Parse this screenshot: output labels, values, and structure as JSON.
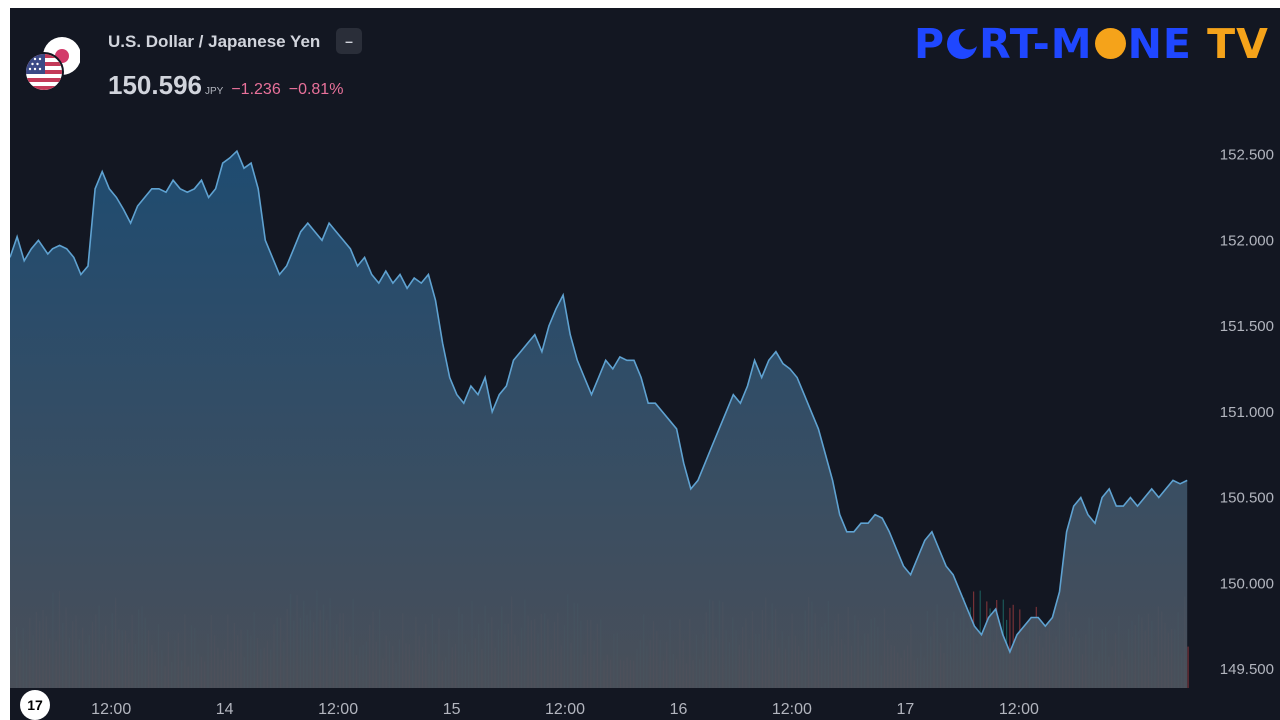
{
  "header": {
    "symbol_name": "U.S. Dollar / Japanese Yen",
    "price": "150.596",
    "currency": "JPY",
    "change": "−1.236",
    "change_pct": "−0.81%",
    "collapse_label": "–"
  },
  "brand": {
    "part1": "P",
    "part2": "RT-M",
    "part3": "NE",
    "part4": " TV"
  },
  "colors": {
    "background": "#131722",
    "line": "#5fa2d1",
    "area_top": "#1f4e75",
    "area_bottom": "#4c525c",
    "axis_text": "#b2b5be",
    "change": "#e8719a",
    "volume_up": "#26a69a",
    "volume_down": "#ef5350",
    "brand_blue": "#1f47ff",
    "brand_orange": "#f5a31a"
  },
  "icons": [
    "us-flag-icon",
    "japan-flag-icon",
    "tradingview-logo-icon"
  ],
  "tv_logo": "17",
  "chart_data": {
    "type": "area",
    "title": "U.S. Dollar / Japanese Yen",
    "ylim": [
      149.4,
      152.9
    ],
    "y_ticks": [
      "152.500",
      "152.000",
      "151.500",
      "151.000",
      "150.500",
      "150.000",
      "149.500"
    ],
    "x_ticks": [
      "12:00",
      "14",
      "12:00",
      "15",
      "12:00",
      "16",
      "12:00",
      "17",
      "12:00"
    ],
    "x_range_hours": [
      0,
      124.8
    ],
    "grid": false,
    "legend": "none",
    "series": [
      {
        "x": [
          0,
          0.75,
          1.5,
          2.25,
          3,
          4,
          4.5,
          5.25,
          6,
          6.75,
          7.5,
          8.25,
          9,
          9.75,
          10.5,
          11.25,
          12,
          12.75,
          13.5,
          14.25,
          15,
          15.75,
          16.5,
          17.25,
          18,
          18.75,
          19.5,
          20.25,
          21,
          21.75,
          22.5,
          23.25,
          24,
          24.75,
          25.5,
          26.25,
          27,
          27.75,
          28.5,
          29.25,
          30,
          30.75,
          31.5,
          32.25,
          33,
          33.75,
          34.5,
          35.25,
          36,
          36.75,
          37.5,
          38.25,
          39,
          39.75,
          40.5,
          41.25,
          42,
          42.75,
          43.5,
          44.25,
          45,
          45.75,
          46.5,
          47.25,
          48,
          48.75,
          49.5,
          50.25,
          51,
          51.75,
          52.5,
          53.25,
          54,
          54.75,
          55.5,
          56.25,
          57,
          57.75,
          58.5,
          59.25,
          60,
          60.75,
          61.5,
          62.25,
          63,
          63.75,
          64.5,
          65.25,
          66,
          66.75,
          67.5,
          68.25,
          69,
          69.75,
          70.5,
          71.25,
          72,
          72.75,
          73.5,
          74.25,
          75,
          75.75,
          76.5,
          77.25,
          78,
          78.75,
          79.5,
          80.25,
          81,
          81.75,
          82.5,
          83.25,
          84,
          84.75,
          85.5,
          86.25,
          87,
          87.75,
          88.5,
          89.25,
          90,
          90.75,
          91.5,
          92.25,
          93,
          93.75,
          94.5,
          95.25,
          96,
          96.75,
          97.5,
          98.25,
          99,
          99.75,
          100.5,
          101.25,
          102,
          102.75,
          103.5,
          104.25,
          105,
          105.75,
          106.5,
          107.25,
          108,
          108.75,
          109.5,
          110.25,
          111,
          111.75,
          112.5,
          113.25,
          114,
          114.75,
          115.5,
          116.25,
          117,
          117.75,
          118.5,
          119.25,
          120,
          120.75,
          121.5,
          122.25,
          123,
          123.75,
          124.5
        ],
        "values": [
          151.9,
          152.02,
          151.88,
          151.95,
          152.0,
          151.92,
          151.95,
          151.97,
          151.95,
          151.9,
          151.8,
          151.85,
          152.3,
          152.4,
          152.3,
          152.25,
          152.18,
          152.1,
          152.2,
          152.25,
          152.3,
          152.3,
          152.28,
          152.35,
          152.3,
          152.28,
          152.3,
          152.35,
          152.25,
          152.3,
          152.45,
          152.48,
          152.52,
          152.42,
          152.45,
          152.3,
          152.0,
          151.9,
          151.8,
          151.85,
          151.95,
          152.05,
          152.1,
          152.05,
          152.0,
          152.1,
          152.05,
          152.0,
          151.95,
          151.85,
          151.9,
          151.8,
          151.75,
          151.82,
          151.75,
          151.8,
          151.72,
          151.78,
          151.75,
          151.8,
          151.65,
          151.4,
          151.2,
          151.1,
          151.05,
          151.15,
          151.1,
          151.2,
          151.0,
          151.1,
          151.15,
          151.3,
          151.35,
          151.4,
          151.45,
          151.35,
          151.5,
          151.6,
          151.68,
          151.45,
          151.3,
          151.2,
          151.1,
          151.2,
          151.3,
          151.25,
          151.32,
          151.3,
          151.3,
          151.2,
          151.05,
          151.05,
          151.0,
          150.95,
          150.9,
          150.7,
          150.55,
          150.6,
          150.7,
          150.8,
          150.9,
          151.0,
          151.1,
          151.05,
          151.15,
          151.3,
          151.2,
          151.3,
          151.35,
          151.28,
          151.25,
          151.2,
          151.1,
          151.0,
          150.9,
          150.75,
          150.6,
          150.4,
          150.3,
          150.3,
          150.35,
          150.35,
          150.4,
          150.38,
          150.3,
          150.2,
          150.1,
          150.05,
          150.15,
          150.25,
          150.3,
          150.2,
          150.1,
          150.05,
          149.95,
          149.85,
          149.75,
          149.7,
          149.8,
          149.85,
          149.7,
          149.6,
          149.7,
          149.75,
          149.8,
          149.8,
          149.75,
          149.8,
          149.95,
          150.3,
          150.45,
          150.5,
          150.4,
          150.35,
          150.5,
          150.55,
          150.45,
          150.45,
          150.5,
          150.45,
          150.5,
          150.55,
          150.5,
          150.55,
          150.6,
          150.58,
          150.6
        ]
      }
    ]
  }
}
